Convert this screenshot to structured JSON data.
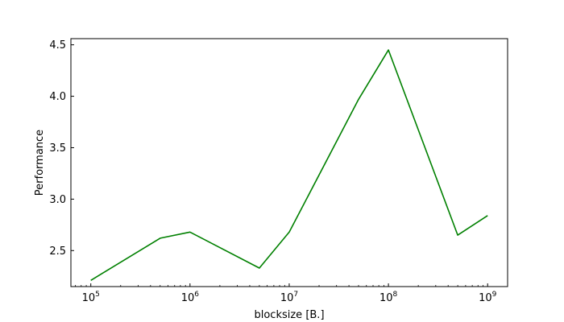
{
  "chart_data": {
    "type": "line",
    "title": "",
    "xlabel": "blocksize [B.]",
    "ylabel": "Performance",
    "xscale": "log",
    "xlim": [
      63000,
      1590000000
    ],
    "ylim": [
      2.15,
      4.56
    ],
    "grid": false,
    "legend": "none",
    "x_ticks": [
      {
        "value": 100000,
        "base": "10",
        "exp": "5"
      },
      {
        "value": 1000000,
        "base": "10",
        "exp": "6"
      },
      {
        "value": 10000000,
        "base": "10",
        "exp": "7"
      },
      {
        "value": 100000000,
        "base": "10",
        "exp": "8"
      },
      {
        "value": 1000000000,
        "base": "10",
        "exp": "9"
      }
    ],
    "y_ticks": [
      {
        "value": 2.5,
        "label": "2.5"
      },
      {
        "value": 3.0,
        "label": "3.0"
      },
      {
        "value": 3.5,
        "label": "3.5"
      },
      {
        "value": 4.0,
        "label": "4.0"
      },
      {
        "value": 4.5,
        "label": "4.5"
      }
    ],
    "series": [
      {
        "color": "#008000",
        "x": [
          100000,
          500000,
          1000000,
          5000000,
          10000000,
          50000000,
          100000000,
          500000000,
          1000000000
        ],
        "y": [
          2.21,
          2.62,
          2.68,
          2.33,
          2.68,
          3.97,
          4.45,
          2.65,
          2.84
        ]
      }
    ]
  }
}
